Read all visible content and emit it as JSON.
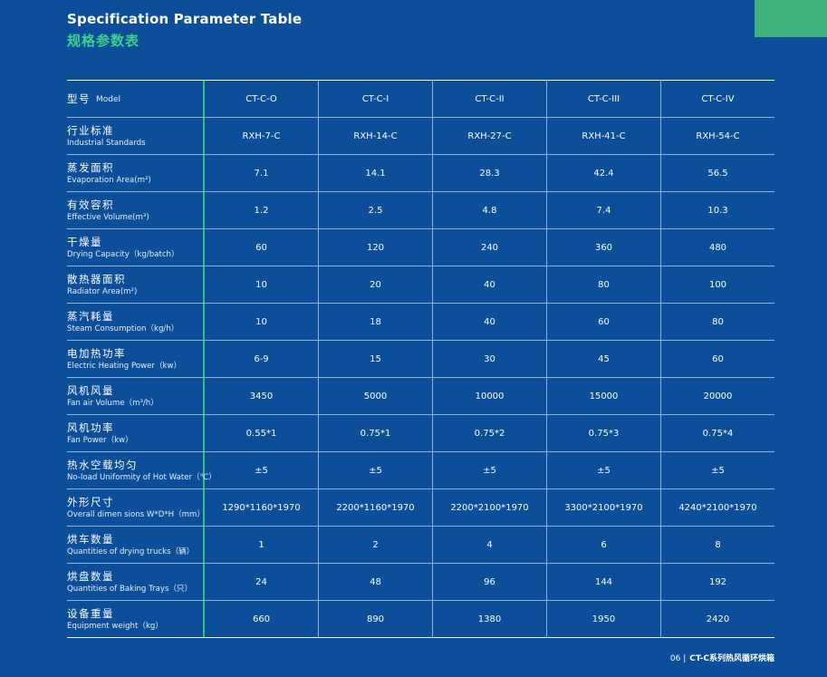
{
  "header": {
    "title_en": "Specification Parameter Table",
    "title_cn": "规格参数表"
  },
  "table": {
    "head": {
      "label_cn": "型号",
      "label_en": "Model",
      "values": [
        "CT-C-O",
        "CT-C-I",
        "CT-C-II",
        "CT-C-III",
        "CT-C-IV"
      ]
    },
    "rows": [
      {
        "label_cn": "行业标准",
        "label_en": "Industrial Standards",
        "values": [
          "RXH-7-C",
          "RXH-14-C",
          "RXH-27-C",
          "RXH-41-C",
          "RXH-54-C"
        ]
      },
      {
        "label_cn": "蒸发面积",
        "label_en": "Evaporation Area(m²)",
        "values": [
          "7.1",
          "14.1",
          "28.3",
          "42.4",
          "56.5"
        ]
      },
      {
        "label_cn": "有效容积",
        "label_en": "Effective Volume(m³)",
        "values": [
          "1.2",
          "2.5",
          "4.8",
          "7.4",
          "10.3"
        ]
      },
      {
        "label_cn": "干燥量",
        "label_en": "Drying Capacity（kg/batch）",
        "values": [
          "60",
          "120",
          "240",
          "360",
          "480"
        ]
      },
      {
        "label_cn": "散热器面积",
        "label_en": "Radiator Area(m²)",
        "values": [
          "10",
          "20",
          "40",
          "80",
          "100"
        ]
      },
      {
        "label_cn": "蒸汽耗量",
        "label_en": "Steam Consumption（kg/h）",
        "values": [
          "10",
          "18",
          "40",
          "60",
          "80"
        ]
      },
      {
        "label_cn": "电加热功率",
        "label_en": "Electric Heating Power（kw）",
        "values": [
          "6-9",
          "15",
          "30",
          "45",
          "60"
        ]
      },
      {
        "label_cn": "风机风量",
        "label_en": "Fan air Volume（m³/h）",
        "values": [
          "3450",
          "5000",
          "10000",
          "15000",
          "20000"
        ]
      },
      {
        "label_cn": "风机功率",
        "label_en": "Fan Power（kw）",
        "values": [
          "0.55*1",
          "0.75*1",
          "0.75*2",
          "0.75*3",
          "0.75*4"
        ]
      },
      {
        "label_cn": "热水空载均匀",
        "label_en": "No-load Uniformity of Hot Water（℃）",
        "values": [
          "±5",
          "±5",
          "±5",
          "±5",
          "±5"
        ]
      },
      {
        "label_cn": "外形尺寸",
        "label_en": "Overall dimen sions W*D*H（mm）",
        "values": [
          "1290*1160*1970",
          "2200*1160*1970",
          "2200*2100*1970",
          "3300*2100*1970",
          "4240*2100*1970"
        ]
      },
      {
        "label_cn": "烘车数量",
        "label_en": "Quantities of drying trucks（辆）",
        "values": [
          "1",
          "2",
          "4",
          "6",
          "8"
        ]
      },
      {
        "label_cn": "烘盘数量",
        "label_en": "Quantities of Baking Trays（只）",
        "values": [
          "24",
          "48",
          "96",
          "144",
          "192"
        ]
      },
      {
        "label_cn": "设备重量",
        "label_en": "Equipment weight（kg）",
        "values": [
          "660",
          "890",
          "1380",
          "1950",
          "2420"
        ]
      }
    ]
  },
  "footer": {
    "page": "06 |",
    "text": "CT-C系列热风循环烘箱"
  },
  "colors": {
    "background": "#0c4e99",
    "accent": "#3eb27a"
  }
}
